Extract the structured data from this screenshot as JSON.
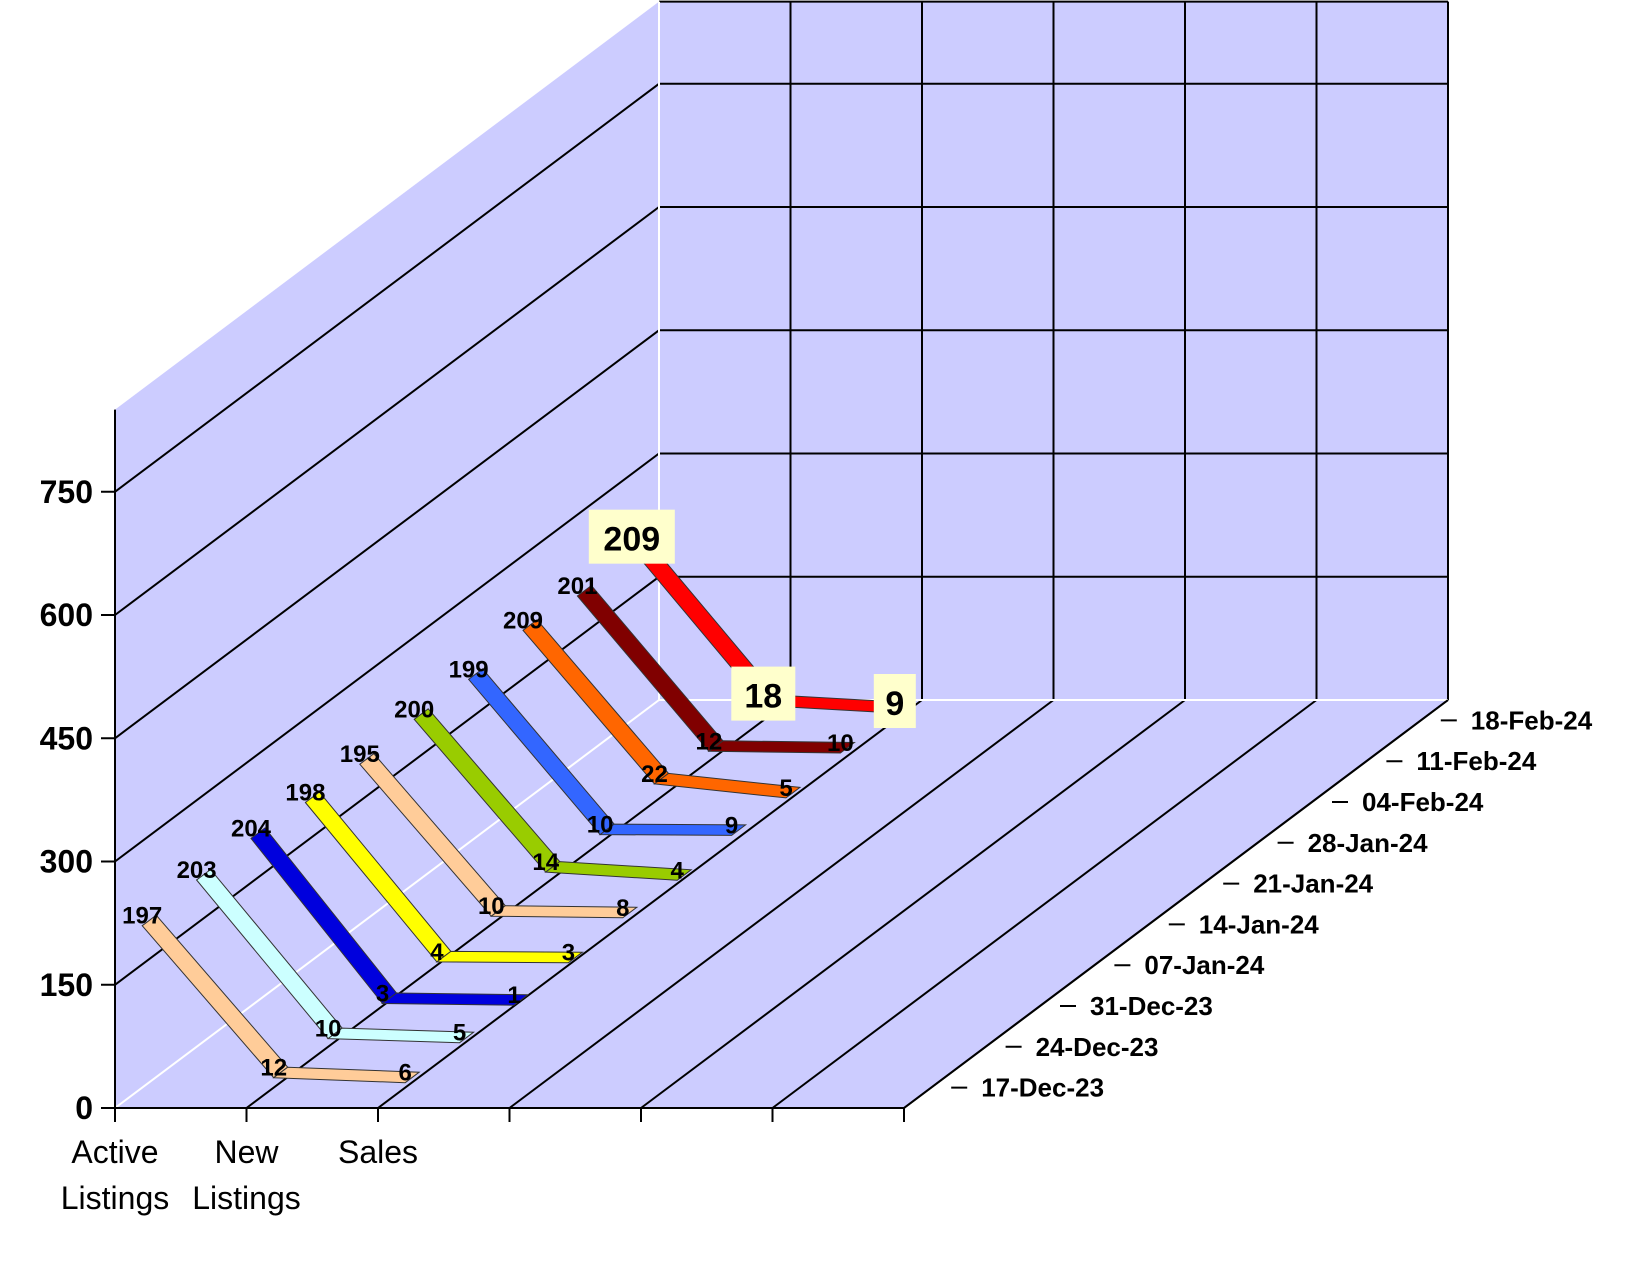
{
  "chart_data": {
    "type": "line",
    "title": "",
    "xlabel": "",
    "ylabel": "",
    "categories": [
      "Active Listings",
      "New Listings",
      "Sales"
    ],
    "ylim": [
      0,
      750
    ],
    "y_ticks": [
      0,
      150,
      300,
      450,
      600,
      750
    ],
    "grid": true,
    "series": [
      {
        "name": "17-Dec-23",
        "color": "#FFCC99",
        "values": [
          197,
          12,
          6
        ]
      },
      {
        "name": "24-Dec-23",
        "color": "#CCFFFF",
        "values": [
          203,
          10,
          5
        ]
      },
      {
        "name": "31-Dec-23",
        "color": "#0000DD",
        "values": [
          204,
          3,
          1
        ]
      },
      {
        "name": "07-Jan-24",
        "color": "#FFFF00",
        "values": [
          198,
          4,
          3
        ]
      },
      {
        "name": "14-Jan-24",
        "color": "#FFCC99",
        "values": [
          195,
          10,
          8
        ]
      },
      {
        "name": "21-Jan-24",
        "color": "#99CC00",
        "values": [
          200,
          14,
          4
        ]
      },
      {
        "name": "28-Jan-24",
        "color": "#3366FF",
        "values": [
          199,
          10,
          9
        ]
      },
      {
        "name": "04-Feb-24",
        "color": "#FF6600",
        "values": [
          209,
          22,
          5
        ]
      },
      {
        "name": "11-Feb-24",
        "color": "#800000",
        "values": [
          201,
          12,
          10
        ]
      },
      {
        "name": "18-Feb-24",
        "color": "#FF0000",
        "values": [
          209,
          18,
          9
        ]
      }
    ],
    "highlighted_series": "18-Feb-24",
    "colors": {
      "wall": "#CCCCFF",
      "gridline": "#000000",
      "label_box": "#FFFFCC"
    }
  }
}
